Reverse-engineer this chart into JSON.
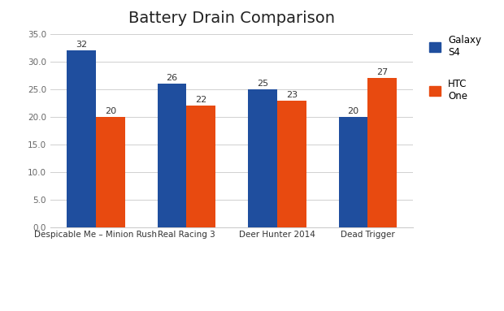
{
  "title": "Battery Drain Comparison",
  "categories": [
    "Despicable Me – Minion Rush",
    "Real Racing 3",
    "Deer Hunter 2014",
    "Dead Trigger"
  ],
  "galaxy_s4": [
    32,
    26,
    25,
    20
  ],
  "htc_one": [
    20,
    22,
    23,
    27
  ],
  "galaxy_color": "#1F4E9E",
  "htc_color": "#E84A10",
  "ylim": [
    0,
    35
  ],
  "yticks": [
    0.0,
    5.0,
    10.0,
    15.0,
    20.0,
    25.0,
    30.0,
    35.0
  ],
  "ytick_labels": [
    "0.0",
    "5.0",
    "10.0",
    "15.0",
    "20.0",
    "25.0",
    "30.0",
    "35.0"
  ],
  "legend_labels": [
    "Galaxy\nS4",
    "HTC\nOne"
  ],
  "bar_width": 0.32,
  "title_fontsize": 14,
  "label_fontsize": 8,
  "tick_fontsize": 7.5,
  "background_color": "#ffffff",
  "grid_color": "#d0d0d0"
}
